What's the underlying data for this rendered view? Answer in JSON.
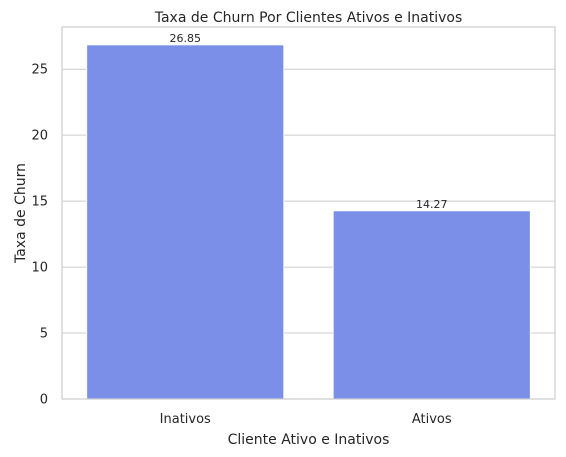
{
  "chart_data": {
    "type": "bar",
    "title": "Taxa de Churn Por Clientes Ativos e Inativos",
    "xlabel": "Cliente Ativo e Inativos",
    "ylabel": "Taxa de Churn",
    "categories": [
      "Inativos",
      "Ativos"
    ],
    "values": [
      26.85,
      14.27
    ],
    "data_labels": [
      "26.85",
      "14.27"
    ],
    "ylim": [
      0,
      28.2
    ],
    "yticks": [
      0,
      5,
      10,
      15,
      20,
      25
    ],
    "grid": true,
    "bar_color": "#7b8fe8"
  }
}
